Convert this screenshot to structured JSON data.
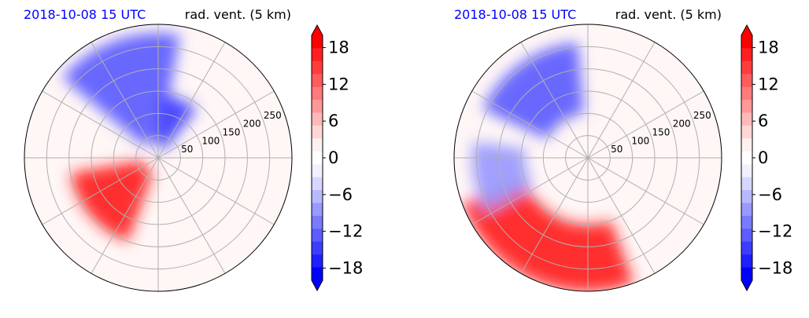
{
  "colors": {
    "title_left": "#0000ff",
    "title_right": "#000000",
    "grid": "#b0b0b0",
    "cmap": [
      "#0000ff",
      "#1f1fff",
      "#3d3dff",
      "#5c5cff",
      "#7a7aff",
      "#9999ff",
      "#b8b8ff",
      "#d6d6ff",
      "#f0f0ff",
      "#ffffff",
      "#fff0f0",
      "#ffd6d6",
      "#ffb8b8",
      "#ff9999",
      "#ff7a7a",
      "#ff5c5c",
      "#ff3d3d",
      "#ff1f1f",
      "#ff0000"
    ]
  },
  "panels": [
    {
      "title_left": "2018-10-08 15 UTC",
      "title_right": "rad. vent. (5 km)",
      "chart_data": {
        "type": "heatmap",
        "projection": "polar",
        "variable": "rad. vent. (5 km)",
        "range_ring_labels": [
          "50",
          "100",
          "150",
          "200",
          "250"
        ],
        "ranges": [
          50,
          100,
          150,
          200,
          250
        ],
        "spokes_deg": [
          0,
          30,
          60,
          90,
          120,
          150,
          180,
          210,
          240,
          270,
          300,
          330
        ],
        "colorbar": {
          "min": -20,
          "max": 20,
          "ticks": [
            18,
            12,
            6,
            0,
            -6,
            -12,
            -18
          ],
          "tick_labels": [
            "18",
            "12",
            "6",
            "0",
            "−6",
            "−12",
            "−18"
          ],
          "extend": "both"
        },
        "features": [
          {
            "sign": "positive",
            "desc": "red core",
            "angle_deg": 220,
            "r0": 35,
            "r1": 200,
            "half_width_deg": 30,
            "value": 18
          },
          {
            "sign": "negative",
            "desc": "blue north",
            "angle_deg": 110,
            "r0": 40,
            "r1": 280,
            "half_width_deg": 30,
            "value": -14
          },
          {
            "sign": "negative",
            "desc": "blue near center",
            "angle_deg": 70,
            "r0": 20,
            "r1": 140,
            "half_width_deg": 18,
            "value": -16
          }
        ]
      }
    },
    {
      "title_left": "2018-10-08 15 UTC",
      "title_right": "rad. vent. (5 km)",
      "chart_data": {
        "type": "heatmap",
        "projection": "polar",
        "variable": "rad. vent. (5 km)",
        "range_ring_labels": [
          "50",
          "100",
          "150",
          "200",
          "250"
        ],
        "ranges": [
          50,
          100,
          150,
          200,
          250
        ],
        "spokes_deg": [
          0,
          30,
          60,
          90,
          120,
          150,
          180,
          210,
          240,
          270,
          300,
          330
        ],
        "colorbar": {
          "min": -20,
          "max": 20,
          "ticks": [
            18,
            12,
            6,
            0,
            -6,
            -12,
            -18
          ],
          "tick_labels": [
            "18",
            "12",
            "6",
            "0",
            "−6",
            "−12",
            "−18"
          ],
          "extend": "both"
        },
        "features": [
          {
            "sign": "positive",
            "desc": "red south band",
            "angle_deg": 245,
            "r0": 150,
            "r1": 300,
            "half_width_deg": 45,
            "value": 18
          },
          {
            "sign": "negative",
            "desc": "blue northwest",
            "angle_deg": 125,
            "r0": 100,
            "r1": 260,
            "half_width_deg": 30,
            "value": -14
          },
          {
            "sign": "negative",
            "desc": "blue west",
            "angle_deg": 190,
            "r0": 140,
            "r1": 260,
            "half_width_deg": 18,
            "value": -8
          }
        ]
      }
    }
  ]
}
